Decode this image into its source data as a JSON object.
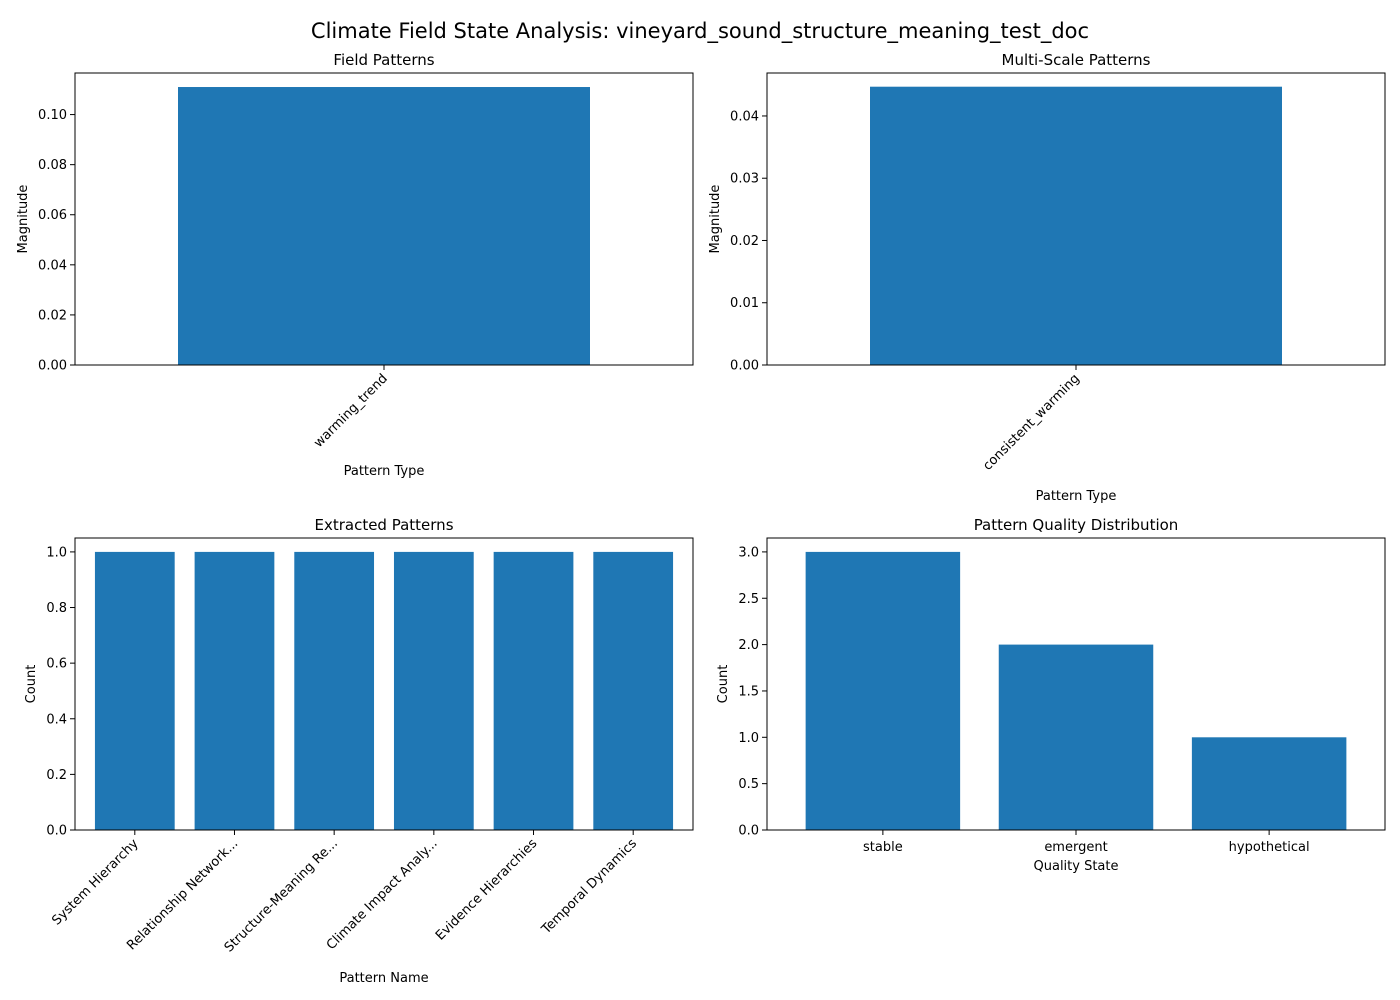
{
  "figure": {
    "title": "Climate Field State Analysis: vineyard_sound_structure_meaning_test_doc"
  },
  "colors": {
    "bar": "#1f77b4",
    "axis": "#000000",
    "background": "#ffffff"
  },
  "chart_data": [
    {
      "type": "bar",
      "title": "Field Patterns",
      "xlabel": "Pattern Type",
      "ylabel": "Magnitude",
      "categories": [
        "warming_trend"
      ],
      "values": [
        0.111
      ],
      "ylim": [
        0,
        0.1166
      ],
      "yticks": [
        "0.00",
        "0.02",
        "0.04",
        "0.06",
        "0.08",
        "0.10"
      ],
      "ytick_values": [
        0,
        0.02,
        0.04,
        0.06,
        0.08,
        0.1
      ],
      "xtick_rotation": -45,
      "grid": false,
      "legend": "none"
    },
    {
      "type": "bar",
      "title": "Multi-Scale Patterns",
      "xlabel": "Pattern Type",
      "ylabel": "Magnitude",
      "categories": [
        "consistent_warming"
      ],
      "values": [
        0.0447
      ],
      "ylim": [
        0,
        0.0469
      ],
      "yticks": [
        "0.00",
        "0.01",
        "0.02",
        "0.03",
        "0.04"
      ],
      "ytick_values": [
        0,
        0.01,
        0.02,
        0.03,
        0.04
      ],
      "xtick_rotation": -45,
      "grid": false,
      "legend": "none"
    },
    {
      "type": "bar",
      "title": "Extracted Patterns",
      "xlabel": "Pattern Name",
      "ylabel": "Count",
      "categories": [
        "System Hierarchy",
        "Relationship Network...",
        "Structure-Meaning Re...",
        "Climate Impact Analy...",
        "Evidence Hierarchies",
        "Temporal Dynamics"
      ],
      "values": [
        1,
        1,
        1,
        1,
        1,
        1
      ],
      "ylim": [
        0,
        1.05
      ],
      "yticks": [
        "0.0",
        "0.2",
        "0.4",
        "0.6",
        "0.8",
        "1.0"
      ],
      "ytick_values": [
        0,
        0.2,
        0.4,
        0.6,
        0.8,
        1.0
      ],
      "xtick_rotation": -45,
      "grid": false,
      "legend": "none"
    },
    {
      "type": "bar",
      "title": "Pattern Quality Distribution",
      "xlabel": "Quality State",
      "ylabel": "Count",
      "categories": [
        "stable",
        "emergent",
        "hypothetical"
      ],
      "values": [
        3,
        2,
        1
      ],
      "ylim": [
        0,
        3.15
      ],
      "yticks": [
        "0.0",
        "0.5",
        "1.0",
        "1.5",
        "2.0",
        "2.5",
        "3.0"
      ],
      "ytick_values": [
        0,
        0.5,
        1.0,
        1.5,
        2.0,
        2.5,
        3.0
      ],
      "xtick_rotation": 0,
      "grid": false,
      "legend": "none"
    }
  ]
}
